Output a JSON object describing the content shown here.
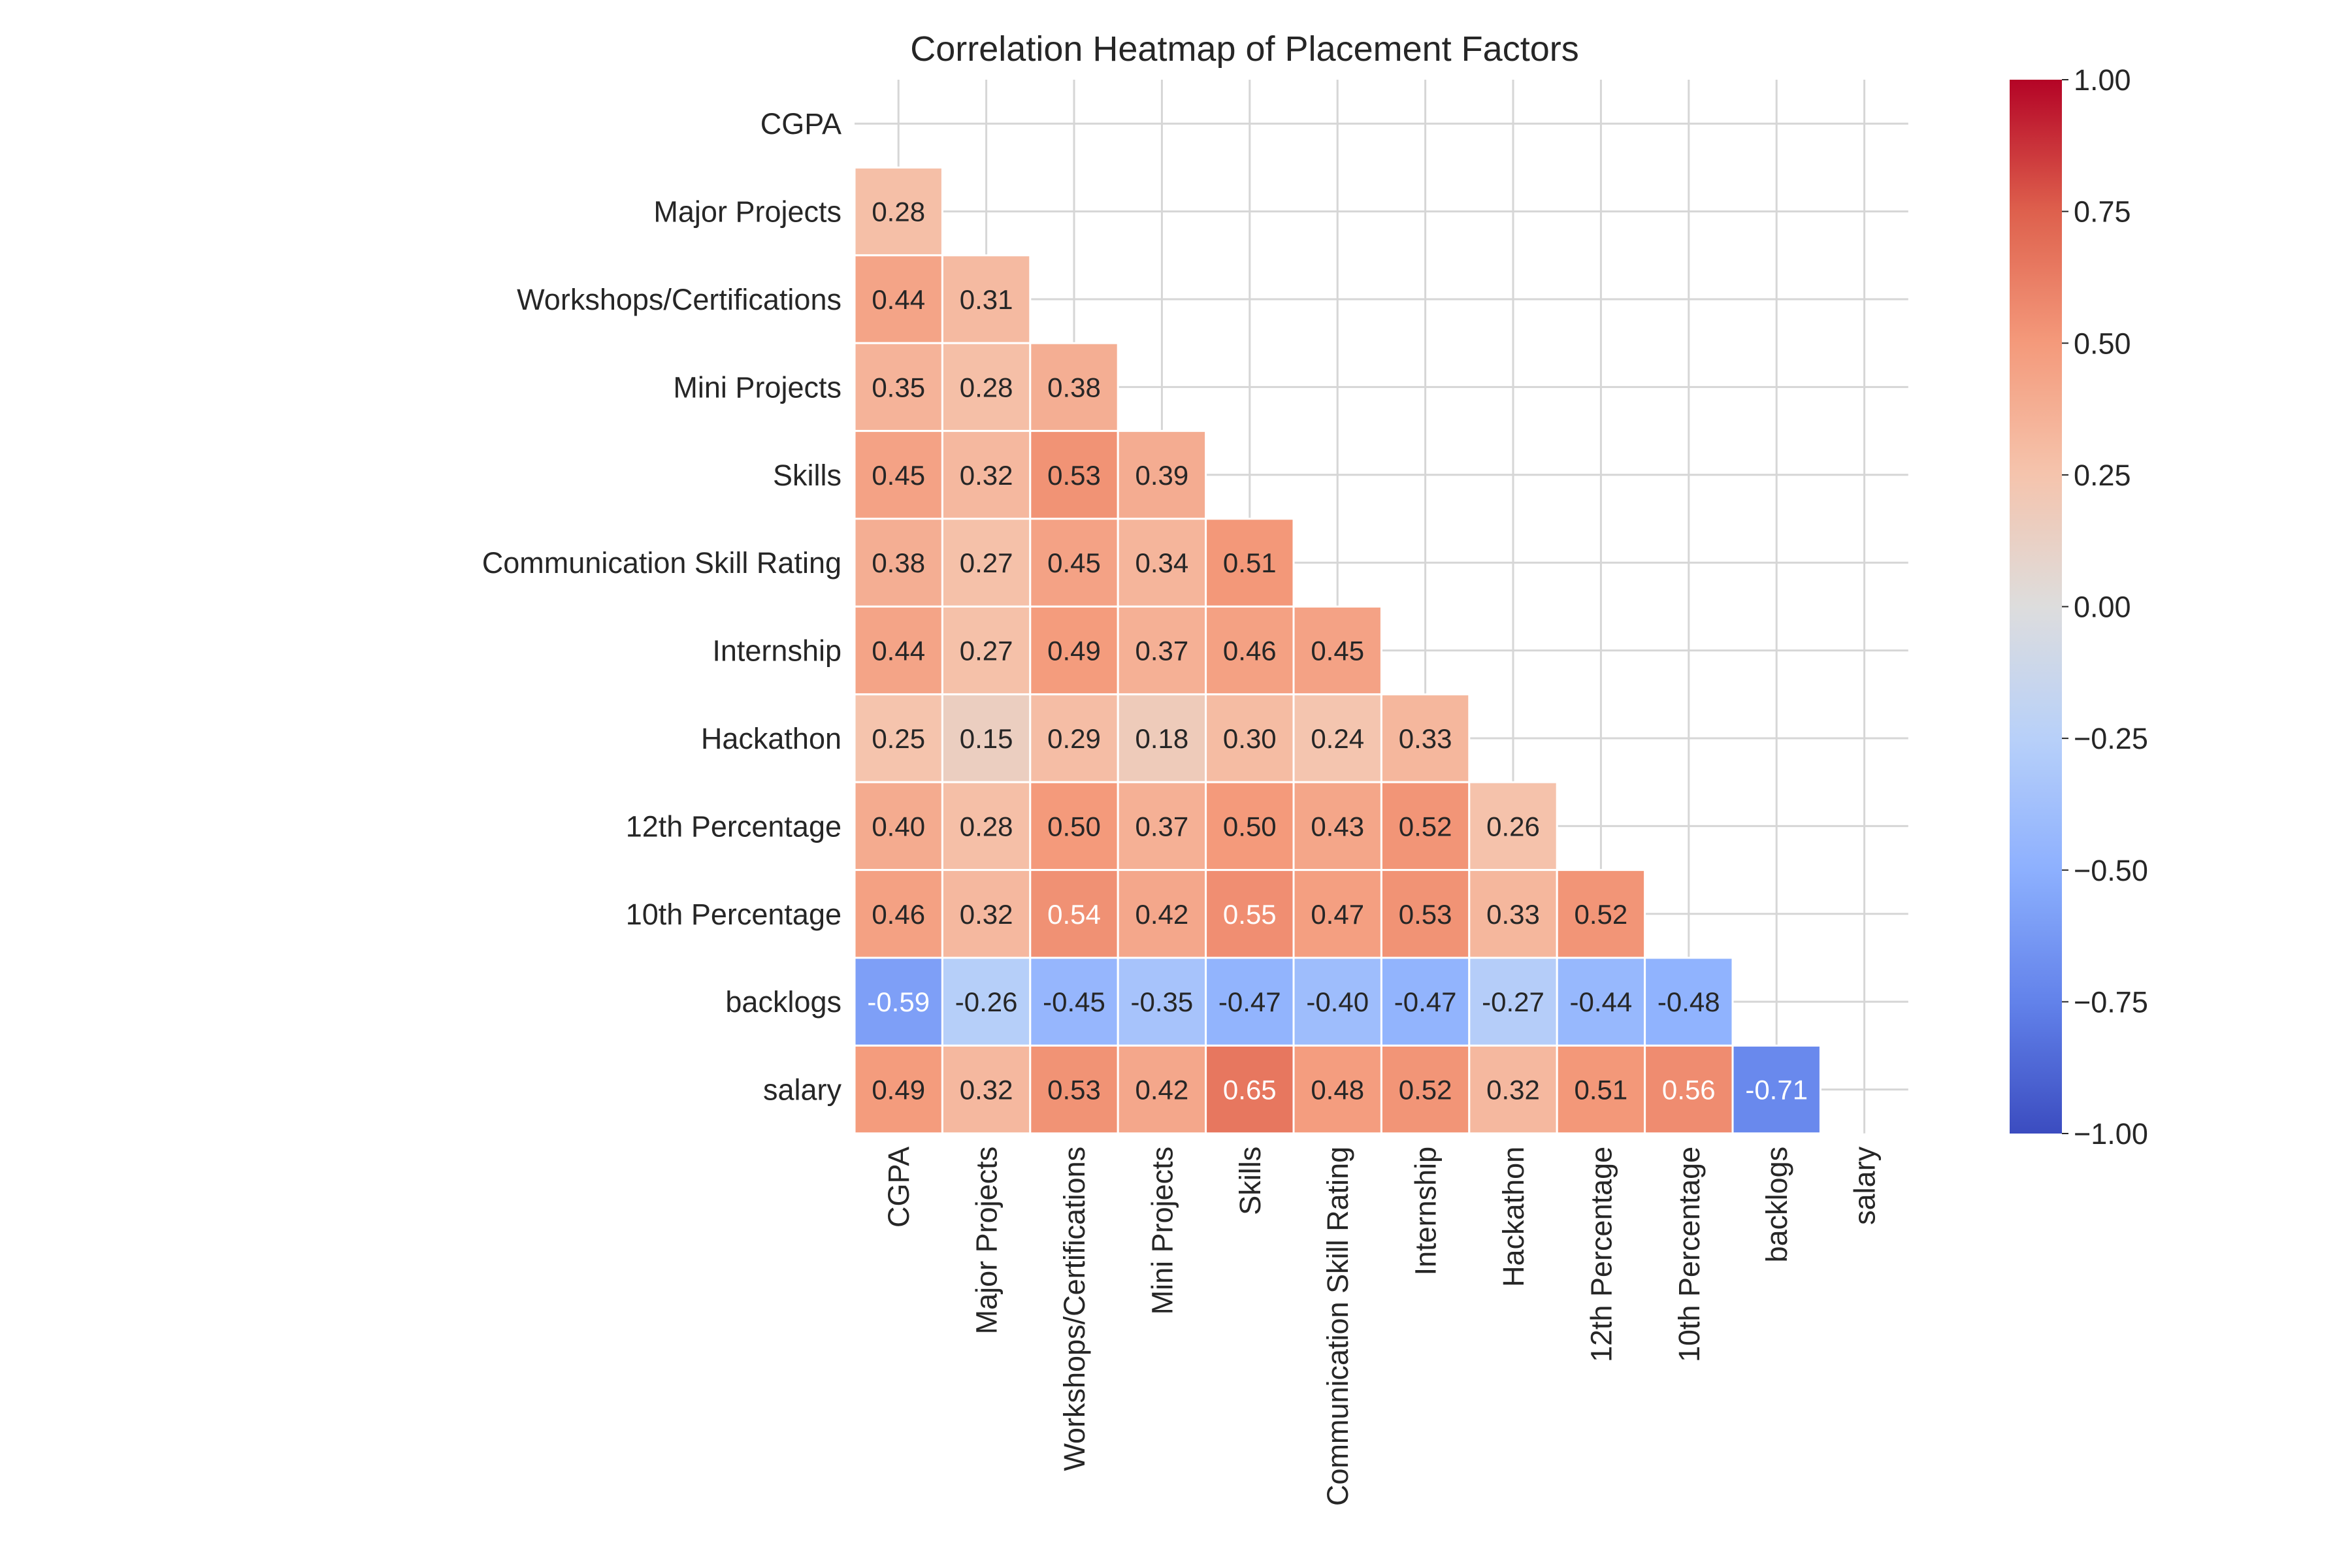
{
  "chart_data": {
    "type": "heatmap",
    "title": "Correlation Heatmap of Placement Factors",
    "variables": [
      "CGPA",
      "Major Projects",
      "Workshops/Certifications",
      "Mini Projects",
      "Skills",
      "Communication Skill Rating",
      "Internship",
      "Hackathon",
      "12th Percentage",
      "10th Percentage",
      "backlogs",
      "salary"
    ],
    "mask": "upper-triangle-and-diagonal",
    "values": [
      [],
      [
        0.28
      ],
      [
        0.44,
        0.31
      ],
      [
        0.35,
        0.28,
        0.38
      ],
      [
        0.45,
        0.32,
        0.53,
        0.39
      ],
      [
        0.38,
        0.27,
        0.45,
        0.34,
        0.51
      ],
      [
        0.44,
        0.27,
        0.49,
        0.37,
        0.46,
        0.45
      ],
      [
        0.25,
        0.15,
        0.29,
        0.18,
        0.3,
        0.24,
        0.33
      ],
      [
        0.4,
        0.28,
        0.5,
        0.37,
        0.5,
        0.43,
        0.52,
        0.26
      ],
      [
        0.46,
        0.32,
        0.54,
        0.42,
        0.55,
        0.47,
        0.53,
        0.33,
        0.52
      ],
      [
        -0.59,
        -0.26,
        -0.45,
        -0.35,
        -0.47,
        -0.4,
        -0.47,
        -0.27,
        -0.44,
        -0.48
      ],
      [
        0.49,
        0.32,
        0.53,
        0.42,
        0.65,
        0.48,
        0.52,
        0.32,
        0.51,
        0.56,
        -0.71
      ]
    ],
    "colormap": "coolwarm",
    "vmin": -1.0,
    "vmax": 1.0,
    "colorbar_ticks": [
      "1.00",
      "0.75",
      "0.50",
      "0.25",
      "0.00",
      "−0.25",
      "−0.50",
      "−0.75",
      "−1.00"
    ],
    "grid": true
  }
}
